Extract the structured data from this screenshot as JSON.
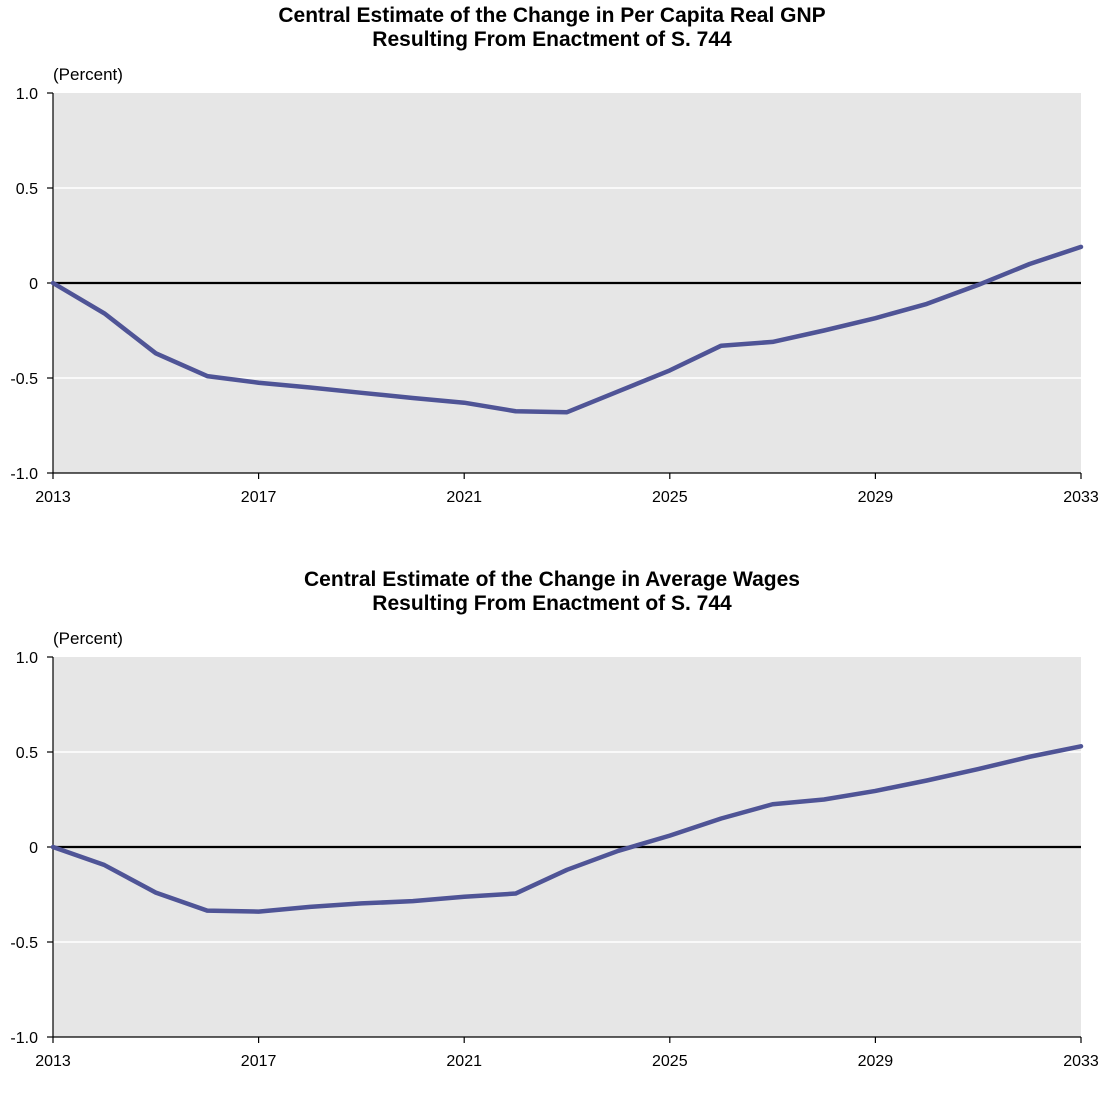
{
  "chart_data": [
    {
      "type": "line",
      "title": "Central Estimate of the Change in Per Capita Real GNP",
      "subtitle": "Resulting From Enactment of S. 744",
      "ylabel": "(Percent)",
      "xlabel": "",
      "x": [
        2013,
        2014,
        2015,
        2016,
        2017,
        2018,
        2019,
        2020,
        2021,
        2022,
        2023,
        2024,
        2025,
        2026,
        2027,
        2028,
        2029,
        2030,
        2031,
        2032,
        2033
      ],
      "series": [
        {
          "values": [
            0,
            -0.16,
            -0.37,
            -0.49,
            -0.525,
            -0.55,
            -0.578,
            -0.605,
            -0.63,
            -0.675,
            -0.68,
            -0.57,
            -0.46,
            -0.33,
            -0.31,
            -0.25,
            -0.185,
            -0.11,
            -0.01,
            0.1,
            0.19
          ],
          "color": "#4f5496"
        }
      ],
      "xlim": [
        2013,
        2033
      ],
      "ylim": [
        -1.0,
        1.0
      ],
      "xticks": [
        "2013",
        "2017",
        "2021",
        "2025",
        "2029",
        "2033"
      ],
      "yticks": [
        "1.0",
        "0.5",
        "0",
        "-0.5",
        "-1.0"
      ],
      "grid": true,
      "zero_line": true,
      "plot_background": "#e6e6e6"
    },
    {
      "type": "line",
      "title": "Central Estimate of the Change in Average Wages",
      "subtitle": "Resulting From Enactment of S. 744",
      "ylabel": "(Percent)",
      "xlabel": "",
      "x": [
        2013,
        2014,
        2015,
        2016,
        2017,
        2018,
        2019,
        2020,
        2021,
        2022,
        2023,
        2024,
        2025,
        2026,
        2027,
        2028,
        2029,
        2030,
        2031,
        2032,
        2033
      ],
      "series": [
        {
          "values": [
            0,
            -0.095,
            -0.24,
            -0.335,
            -0.34,
            -0.315,
            -0.297,
            -0.285,
            -0.262,
            -0.245,
            -0.12,
            -0.02,
            0.06,
            0.15,
            0.225,
            0.25,
            0.295,
            0.35,
            0.41,
            0.475,
            0.53
          ],
          "color": "#4f5496"
        }
      ],
      "xlim": [
        2013,
        2033
      ],
      "ylim": [
        -1.0,
        1.0
      ],
      "xticks": [
        "2013",
        "2017",
        "2021",
        "2025",
        "2029",
        "2033"
      ],
      "yticks": [
        "1.0",
        "0.5",
        "0",
        "-0.5",
        "-1.0"
      ],
      "grid": true,
      "zero_line": true,
      "plot_background": "#e6e6e6"
    }
  ]
}
